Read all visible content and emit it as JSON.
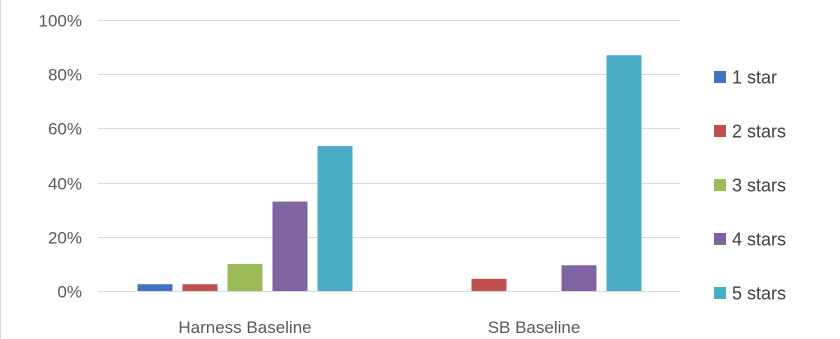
{
  "chart_data": {
    "type": "bar",
    "title": "",
    "xlabel": "",
    "ylabel": "",
    "categories": [
      "Harness Baseline",
      "SB Baseline"
    ],
    "series": [
      {
        "name": "1 star",
        "color": "#4472C4",
        "values": [
          2.5,
          0
        ]
      },
      {
        "name": "2 stars",
        "color": "#C0504D",
        "values": [
          2.5,
          4.5
        ]
      },
      {
        "name": "3 stars",
        "color": "#9BBB59",
        "values": [
          10,
          0
        ]
      },
      {
        "name": "4 stars",
        "color": "#8064A2",
        "values": [
          33,
          9.5
        ]
      },
      {
        "name": "5 stars",
        "color": "#4BACC6",
        "values": [
          53.5,
          87
        ]
      }
    ],
    "ylim": [
      0,
      100
    ],
    "yticks": [
      0,
      20,
      40,
      60,
      80,
      100
    ],
    "ytick_labels": [
      "0%",
      "20%",
      "40%",
      "60%",
      "80%",
      "100%"
    ],
    "grid": true,
    "legend_position": "right",
    "gridline_color": "#d9d9d9"
  }
}
